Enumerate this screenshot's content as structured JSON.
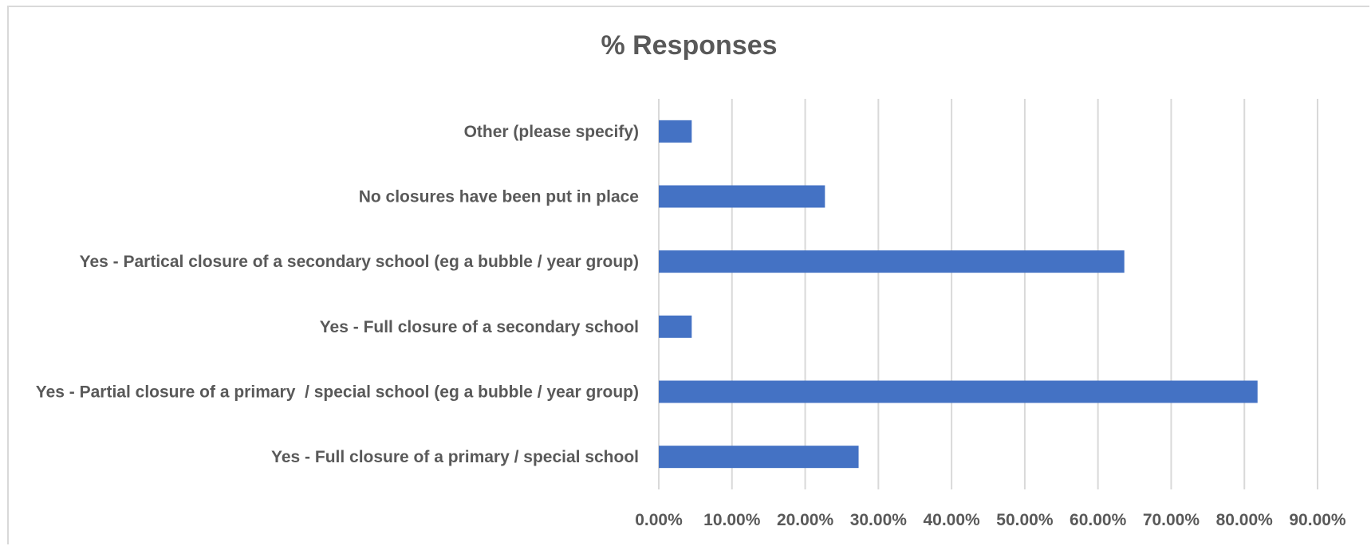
{
  "chart_data": {
    "type": "bar",
    "orientation": "horizontal",
    "title": "% Responses",
    "categories": [
      "Other (please specify)",
      "No closures have been put in place",
      "Yes - Partical closure of a secondary school (eg a bubble / year group)",
      "Yes - Full closure of a secondary school",
      "Yes - Partial closure of a primary  / special school (eg a bubble / year group)",
      "Yes - Full closure of a primary / special school"
    ],
    "values": [
      4.5,
      22.7,
      63.6,
      4.5,
      81.8,
      27.3
    ],
    "xlim": [
      0,
      90
    ],
    "xticks": [
      "0.00%",
      "10.00%",
      "20.00%",
      "30.00%",
      "40.00%",
      "50.00%",
      "60.00%",
      "70.00%",
      "80.00%",
      "90.00%"
    ],
    "grid": true,
    "bar_color": "#4472C4"
  }
}
